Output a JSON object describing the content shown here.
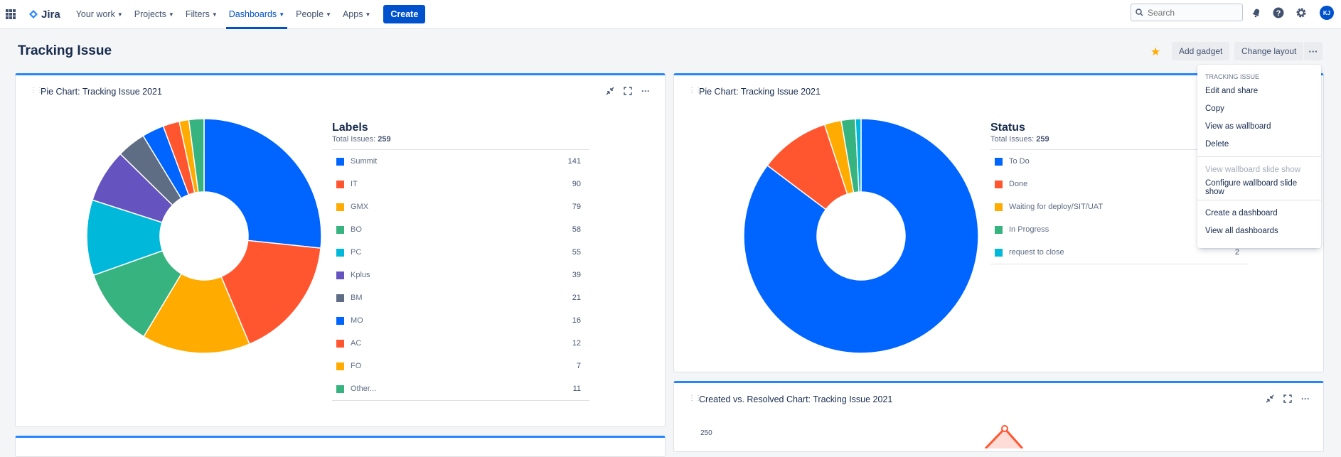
{
  "nav": {
    "logo": "Jira",
    "items": [
      {
        "label": "Your work"
      },
      {
        "label": "Projects"
      },
      {
        "label": "Filters"
      },
      {
        "label": "Dashboards"
      },
      {
        "label": "People"
      },
      {
        "label": "Apps"
      }
    ],
    "create_label": "Create",
    "search_placeholder": "Search",
    "avatar_initials": "KJ"
  },
  "page": {
    "title": "Tracking Issue",
    "add_gadget": "Add gadget",
    "change_layout": "Change layout",
    "more": "···"
  },
  "gadgets": [
    {
      "title": "Pie Chart: Tracking Issue 2021",
      "legend_title": "Labels",
      "total_label": "Total Issues:",
      "total_value": "259"
    },
    {
      "title": "Pie Chart: Tracking Issue 2021",
      "legend_title": "Status",
      "total_label": "Total Issues:",
      "total_value": "259"
    },
    {
      "title": "Created vs. Resolved Chart: Tracking Issue 2021",
      "y_tick": "250"
    }
  ],
  "chart_data": [
    {
      "type": "pie",
      "title": "Labels",
      "categories": [
        "Summit",
        "IT",
        "GMX",
        "BO",
        "PC",
        "Kplus",
        "BM",
        "MO",
        "AC",
        "FO",
        "Other..."
      ],
      "values": [
        141,
        90,
        79,
        58,
        55,
        39,
        21,
        16,
        12,
        7,
        11
      ],
      "colors": [
        "#0065ff",
        "#ff5630",
        "#ffab00",
        "#36b37e",
        "#00b8d9",
        "#6554c0",
        "#5e6c84",
        "#0065ff",
        "#ff5630",
        "#ffab00",
        "#36b37e"
      ],
      "legend": "right"
    },
    {
      "type": "pie",
      "title": "Status",
      "categories": [
        "To Do",
        "Done",
        "Waiting for deploy/SIT/UAT",
        "In Progress",
        "request to close"
      ],
      "values": [
        null,
        null,
        null,
        null,
        2
      ],
      "values_estimated": [
        220,
        25,
        6,
        5,
        2
      ],
      "colors": [
        "#0065ff",
        "#ff5630",
        "#ffab00",
        "#36b37e",
        "#00b8d9"
      ],
      "legend": "right"
    }
  ],
  "menu": {
    "heading": "TRACKING ISSUE",
    "items": [
      {
        "label": "Edit and share",
        "disabled": false
      },
      {
        "label": "Copy",
        "disabled": false
      },
      {
        "label": "View as wallboard",
        "disabled": false
      },
      {
        "label": "Delete",
        "disabled": false
      },
      {
        "label": "View wallboard slide show",
        "disabled": true
      },
      {
        "label": "Configure wallboard slide show",
        "disabled": false
      },
      {
        "label": "Create a dashboard",
        "disabled": false
      },
      {
        "label": "View all dashboards",
        "disabled": false
      }
    ]
  },
  "icons": {
    "apps_grid": "grid-icon",
    "notifications": "bell-icon",
    "help": "help-icon",
    "settings": "gear-icon",
    "favorite": "star-icon"
  }
}
